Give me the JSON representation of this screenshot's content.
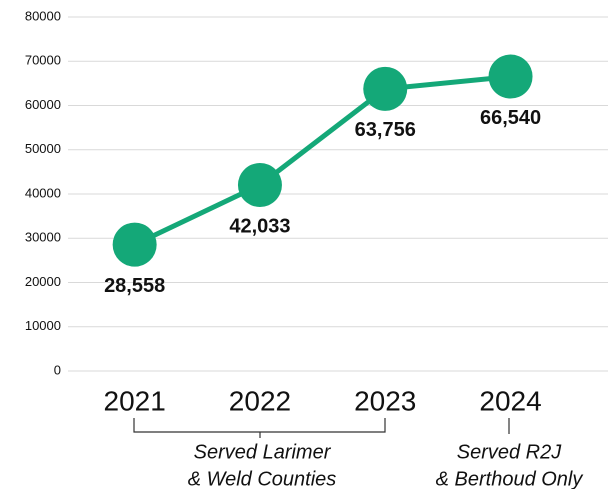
{
  "chart_data": {
    "type": "line",
    "categories": [
      "2021",
      "2022",
      "2023",
      "2024"
    ],
    "series": [
      {
        "color": "#14a878",
        "values": [
          28558,
          42033,
          63756,
          66540
        ],
        "value_labels": [
          "28,558",
          "42,033",
          "63,756",
          "66,540"
        ]
      }
    ],
    "ylim": [
      0,
      80000
    ],
    "yticks": [
      0,
      10000,
      20000,
      30000,
      40000,
      50000,
      60000,
      70000,
      80000
    ],
    "grid": true,
    "annotations": [
      [
        "Served Larimer",
        "& Weld Counties"
      ],
      [
        "Served R2J",
        "& Berthoud Only"
      ]
    ]
  }
}
